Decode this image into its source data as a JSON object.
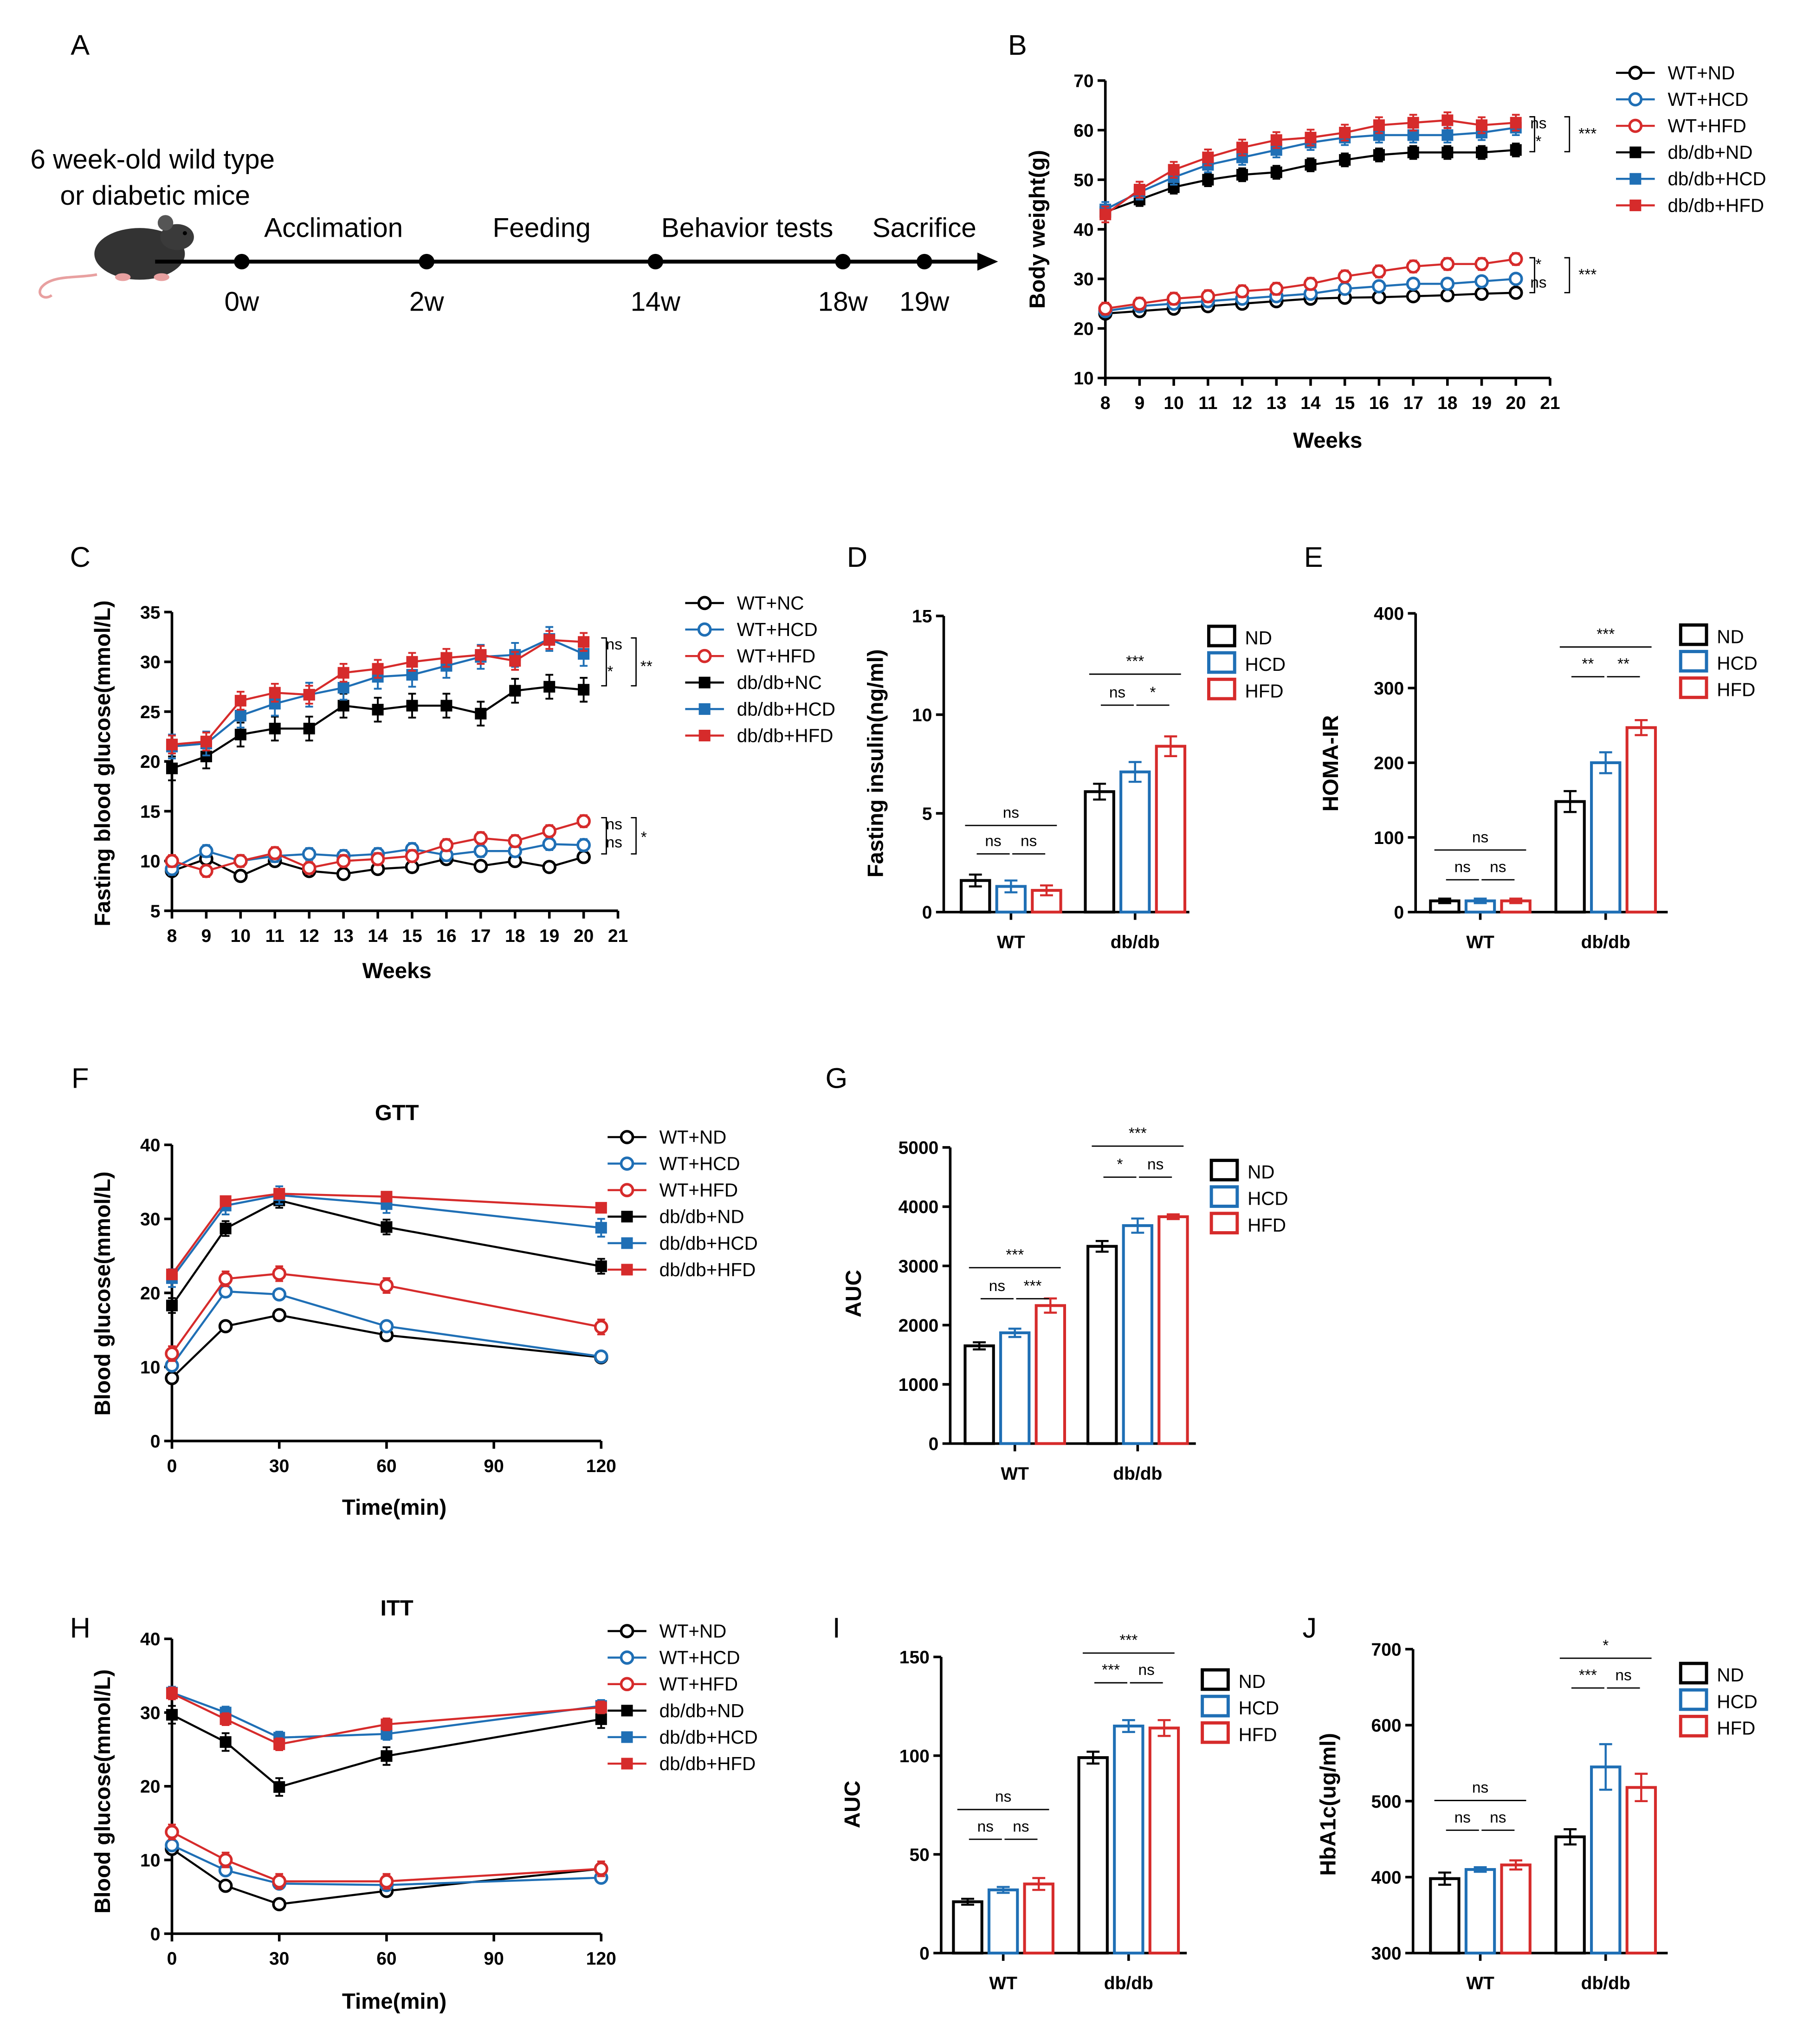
{
  "panel_letters": [
    "A",
    "B",
    "C",
    "D",
    "E",
    "F",
    "G",
    "H",
    "I",
    "J"
  ],
  "timeline": {
    "title_line1": "6 week-old wild type",
    "title_line2": "or diabetic mice",
    "phases": [
      "Acclimation",
      "Feeding",
      "Behavior tests",
      "Sacrifice"
    ],
    "time_points": [
      "0w",
      "2w",
      "14w",
      "18w",
      "19w"
    ]
  },
  "chart_data": [
    {
      "panel": "B",
      "type": "line",
      "xlabel": "Weeks",
      "ylabel": "Body weight(g)",
      "xlim": [
        8,
        21
      ],
      "ylim": [
        10,
        70
      ],
      "x_ticks": [
        "8",
        "9",
        "10",
        "11",
        "12",
        "13",
        "14",
        "15",
        "16",
        "17",
        "18",
        "19",
        "20",
        "21"
      ],
      "y_ticks": [
        "10",
        "20",
        "30",
        "40",
        "50",
        "60",
        "70"
      ],
      "x": [
        8,
        9,
        10,
        11,
        12,
        13,
        14,
        15,
        16,
        17,
        18,
        19,
        20
      ],
      "series": [
        {
          "name": "WT+ND",
          "color": "#000000",
          "marker": "open-circle",
          "err": 0.8,
          "values": [
            23,
            23.5,
            24,
            24.5,
            25,
            25.5,
            26,
            26.2,
            26.3,
            26.5,
            26.7,
            27,
            27.2
          ]
        },
        {
          "name": "WT+HCD",
          "color": "#1f6fb5",
          "marker": "open-circle",
          "err": 0.8,
          "values": [
            23.5,
            24.5,
            25,
            25.5,
            26,
            26.5,
            27,
            28,
            28.5,
            29,
            29,
            29.5,
            30
          ]
        },
        {
          "name": "WT+HFD",
          "color": "#d62b2b",
          "marker": "open-circle",
          "err": 1.2,
          "values": [
            24,
            25,
            26,
            26.5,
            27.5,
            28,
            29,
            30.5,
            31.5,
            32.5,
            33,
            33,
            34
          ]
        },
        {
          "name": "db/db+ND",
          "color": "#000000",
          "marker": "filled-square",
          "err": 1.3,
          "values": [
            43.5,
            46,
            48.5,
            50,
            51,
            51.5,
            53,
            54,
            55,
            55.5,
            55.5,
            55.5,
            56
          ]
        },
        {
          "name": "db/db+HCD",
          "color": "#1f6fb5",
          "marker": "filled-square",
          "err": 1.5,
          "values": [
            44,
            47.5,
            50.5,
            53,
            54.5,
            56,
            57.5,
            58.5,
            59,
            59,
            59,
            59.5,
            60.5
          ]
        },
        {
          "name": "db/db+HFD",
          "color": "#d62b2b",
          "marker": "filled-square",
          "err": 1.6,
          "values": [
            43,
            48,
            52,
            54.5,
            56.5,
            58,
            58.5,
            59.5,
            61,
            61.5,
            62,
            61,
            61.5
          ]
        }
      ],
      "annotations": [
        "ns",
        "*",
        "***",
        "*",
        "ns",
        "***"
      ]
    },
    {
      "panel": "C",
      "type": "line",
      "xlabel": "Weeks",
      "ylabel": "Fasting blood glucose(mmol/L)",
      "xlim": [
        8,
        21
      ],
      "ylim": [
        5,
        35
      ],
      "x_ticks": [
        "8",
        "9",
        "10",
        "11",
        "12",
        "13",
        "14",
        "15",
        "16",
        "17",
        "18",
        "19",
        "20",
        "21"
      ],
      "y_ticks": [
        "5",
        "10",
        "15",
        "20",
        "25",
        "30",
        "35"
      ],
      "x": [
        8,
        9,
        10,
        11,
        12,
        13,
        14,
        15,
        16,
        17,
        18,
        19,
        20
      ],
      "series": [
        {
          "name": "WT+NC",
          "color": "#000000",
          "marker": "open-circle",
          "err": 0.4,
          "values": [
            9,
            10.2,
            8.5,
            10,
            9,
            8.7,
            9.2,
            9.4,
            10.2,
            9.5,
            10,
            9.4,
            10.4
          ]
        },
        {
          "name": "WT+HCD",
          "color": "#1f6fb5",
          "marker": "open-circle",
          "err": 0.6,
          "values": [
            9.2,
            11,
            10,
            10.5,
            10.7,
            10.5,
            10.7,
            11.2,
            10.6,
            11,
            11,
            11.7,
            11.6
          ]
        },
        {
          "name": "WT+HFD",
          "color": "#d62b2b",
          "marker": "open-circle",
          "err": 0.6,
          "values": [
            10,
            9,
            10,
            10.8,
            9.3,
            10,
            10.2,
            10.5,
            11.6,
            12.3,
            12,
            13,
            14
          ]
        },
        {
          "name": "db/db+NC",
          "color": "#000000",
          "marker": "filled-square",
          "err": 1.2,
          "values": [
            19.3,
            20.5,
            22.7,
            23.3,
            23.3,
            25.6,
            25.2,
            25.6,
            25.6,
            24.8,
            27.1,
            27.5,
            27.2
          ]
        },
        {
          "name": "db/db+HCD",
          "color": "#1f6fb5",
          "marker": "filled-square",
          "err": 1.2,
          "values": [
            21.5,
            21.8,
            24.6,
            25.8,
            26.7,
            27.4,
            28.5,
            28.7,
            29.6,
            30.5,
            30.7,
            32.3,
            30.8
          ]
        },
        {
          "name": "db/db+HFD",
          "color": "#d62b2b",
          "marker": "filled-square",
          "err": 0.9,
          "values": [
            21.7,
            22,
            26.1,
            26.9,
            26.7,
            28.9,
            29.3,
            30,
            30.4,
            30.7,
            30.1,
            32.2,
            32
          ]
        }
      ],
      "annotations": [
        "ns",
        "*",
        "**",
        "ns",
        "ns",
        "*"
      ]
    },
    {
      "panel": "D",
      "type": "bar",
      "ylabel": "Fasting insulin(ng/ml)",
      "ylim": [
        0,
        15
      ],
      "y_ticks": [
        "0",
        "5",
        "10",
        "15"
      ],
      "categories": [
        "WT",
        "db/db"
      ],
      "legend": [
        "ND",
        "HCD",
        "HFD"
      ],
      "colors": [
        "#000000",
        "#1f6fb5",
        "#d62b2b"
      ],
      "series": [
        {
          "name": "ND",
          "values": [
            1.6,
            6.1
          ],
          "err": [
            0.3,
            0.4
          ]
        },
        {
          "name": "HCD",
          "values": [
            1.3,
            7.1
          ],
          "err": [
            0.3,
            0.5
          ]
        },
        {
          "name": "HFD",
          "values": [
            1.1,
            8.4
          ],
          "err": [
            0.25,
            0.5
          ]
        }
      ],
      "significance": [
        {
          "group": 0,
          "from": 0,
          "to": 1,
          "label": "ns"
        },
        {
          "group": 0,
          "from": 1,
          "to": 2,
          "label": "ns"
        },
        {
          "group": 0,
          "from": 0,
          "to": 2,
          "label": "ns"
        },
        {
          "group": 1,
          "from": 0,
          "to": 1,
          "label": "ns"
        },
        {
          "group": 1,
          "from": 1,
          "to": 2,
          "label": "*"
        },
        {
          "group": 1,
          "from": 0,
          "to": 2,
          "label": "***"
        }
      ]
    },
    {
      "panel": "E",
      "type": "bar",
      "ylabel": "HOMA-IR",
      "ylim": [
        0,
        400
      ],
      "y_ticks": [
        "0",
        "100",
        "200",
        "300",
        "400"
      ],
      "categories": [
        "WT",
        "db/db"
      ],
      "legend": [
        "ND",
        "HCD",
        "HFD"
      ],
      "colors": [
        "#000000",
        "#1f6fb5",
        "#d62b2b"
      ],
      "series": [
        {
          "name": "ND",
          "values": [
            15,
            148
          ],
          "err": [
            3,
            14
          ]
        },
        {
          "name": "HCD",
          "values": [
            15,
            200
          ],
          "err": [
            3,
            14
          ]
        },
        {
          "name": "HFD",
          "values": [
            15,
            247
          ],
          "err": [
            3,
            10
          ]
        }
      ],
      "significance": [
        {
          "group": 0,
          "from": 0,
          "to": 1,
          "label": "ns"
        },
        {
          "group": 0,
          "from": 1,
          "to": 2,
          "label": "ns"
        },
        {
          "group": 0,
          "from": 0,
          "to": 2,
          "label": "ns"
        },
        {
          "group": 1,
          "from": 0,
          "to": 1,
          "label": "**"
        },
        {
          "group": 1,
          "from": 1,
          "to": 2,
          "label": "**"
        },
        {
          "group": 1,
          "from": 0,
          "to": 2,
          "label": "***"
        }
      ]
    },
    {
      "panel": "F",
      "type": "line",
      "title": "GTT",
      "xlabel": "Time(min)",
      "ylabel": "Blood glucose(mmol/L)",
      "xlim": [
        0,
        120
      ],
      "ylim": [
        0,
        40
      ],
      "x_ticks": [
        "0",
        "30",
        "60",
        "90",
        "120"
      ],
      "y_ticks": [
        "0",
        "10",
        "20",
        "30",
        "40"
      ],
      "x": [
        0,
        15,
        30,
        60,
        120
      ],
      "series": [
        {
          "name": "WT+ND",
          "color": "#000000",
          "marker": "open-circle",
          "err": 0.6,
          "values": [
            8.5,
            15.5,
            17,
            14.3,
            11.3
          ]
        },
        {
          "name": "WT+HCD",
          "color": "#1f6fb5",
          "marker": "open-circle",
          "err": 0.6,
          "values": [
            10.2,
            20.2,
            19.8,
            15.5,
            11.4
          ]
        },
        {
          "name": "WT+HFD",
          "color": "#d62b2b",
          "marker": "open-circle",
          "err": 1,
          "values": [
            11.8,
            21.9,
            22.6,
            21,
            15.4
          ]
        },
        {
          "name": "db/db+ND",
          "color": "#000000",
          "marker": "filled-square",
          "err": 1,
          "values": [
            18.3,
            28.7,
            32.5,
            28.9,
            23.6
          ]
        },
        {
          "name": "db/db+HCD",
          "color": "#1f6fb5",
          "marker": "filled-square",
          "err": 1.2,
          "values": [
            22,
            31.8,
            33.2,
            32,
            28.8
          ]
        },
        {
          "name": "db/db+HFD",
          "color": "#d62b2b",
          "marker": "filled-square",
          "err": 0.6,
          "values": [
            22.5,
            32.4,
            33.4,
            33,
            31.5
          ]
        }
      ],
      "annotations": []
    },
    {
      "panel": "G",
      "type": "bar",
      "ylabel": "AUC",
      "ylim": [
        0,
        5000
      ],
      "y_ticks": [
        "0",
        "1000",
        "2000",
        "3000",
        "4000",
        "5000"
      ],
      "categories": [
        "WT",
        "db/db"
      ],
      "legend": [
        "ND",
        "HCD",
        "HFD"
      ],
      "colors": [
        "#000000",
        "#1f6fb5",
        "#d62b2b"
      ],
      "series": [
        {
          "name": "ND",
          "values": [
            1650,
            3330
          ],
          "err": [
            60,
            90
          ]
        },
        {
          "name": "HCD",
          "values": [
            1870,
            3680
          ],
          "err": [
            70,
            120
          ]
        },
        {
          "name": "HFD",
          "values": [
            2330,
            3830
          ],
          "err": [
            120,
            40
          ]
        }
      ],
      "significance": [
        {
          "group": 0,
          "from": 0,
          "to": 1,
          "label": "ns"
        },
        {
          "group": 0,
          "from": 1,
          "to": 2,
          "label": "***"
        },
        {
          "group": 0,
          "from": 0,
          "to": 2,
          "label": "***"
        },
        {
          "group": 1,
          "from": 0,
          "to": 1,
          "label": "*"
        },
        {
          "group": 1,
          "from": 1,
          "to": 2,
          "label": "ns"
        },
        {
          "group": 1,
          "from": 0,
          "to": 2,
          "label": "***"
        }
      ]
    },
    {
      "panel": "H",
      "type": "line",
      "title": "ITT",
      "xlabel": "Time(min)",
      "ylabel": "Blood glucose(mmol/L)",
      "xlim": [
        0,
        120
      ],
      "ylim": [
        0,
        40
      ],
      "x_ticks": [
        "0",
        "30",
        "60",
        "90",
        "120"
      ],
      "y_ticks": [
        "0",
        "10",
        "20",
        "30",
        "40"
      ],
      "x": [
        0,
        15,
        30,
        60,
        120
      ],
      "series": [
        {
          "name": "WT+ND",
          "color": "#000000",
          "marker": "open-circle",
          "err": 0.4,
          "values": [
            11.5,
            6.5,
            4,
            5.8,
            8.8
          ]
        },
        {
          "name": "WT+HCD",
          "color": "#1f6fb5",
          "marker": "open-circle",
          "err": 0.6,
          "values": [
            12,
            8.6,
            6.8,
            6.6,
            7.6
          ]
        },
        {
          "name": "WT+HFD",
          "color": "#d62b2b",
          "marker": "open-circle",
          "err": 1,
          "values": [
            13.8,
            10,
            7.1,
            7.1,
            8.8
          ]
        },
        {
          "name": "db/db+ND",
          "color": "#000000",
          "marker": "filled-square",
          "err": 1.2,
          "values": [
            29.7,
            26,
            19.9,
            24.1,
            29.1
          ]
        },
        {
          "name": "db/db+HCD",
          "color": "#1f6fb5",
          "marker": "filled-square",
          "err": 0.8,
          "values": [
            32.7,
            30,
            26.6,
            27.1,
            30.9
          ]
        },
        {
          "name": "db/db+HFD",
          "color": "#d62b2b",
          "marker": "filled-square",
          "err": 0.8,
          "values": [
            32.6,
            29.1,
            25.7,
            28.4,
            30.7
          ]
        }
      ],
      "annotations": []
    },
    {
      "panel": "I",
      "type": "bar",
      "ylabel": "AUC",
      "ylim": [
        0,
        150
      ],
      "y_ticks": [
        "0",
        "50",
        "100",
        "150"
      ],
      "categories": [
        "WT",
        "db/db"
      ],
      "legend": [
        "ND",
        "HCD",
        "HFD"
      ],
      "colors": [
        "#000000",
        "#1f6fb5",
        "#d62b2b"
      ],
      "series": [
        {
          "name": "ND",
          "values": [
            26,
            99
          ],
          "err": [
            1.5,
            3
          ]
        },
        {
          "name": "HCD",
          "values": [
            32,
            115
          ],
          "err": [
            1.5,
            3
          ]
        },
        {
          "name": "HFD",
          "values": [
            35,
            114
          ],
          "err": [
            3,
            4
          ]
        }
      ],
      "significance": [
        {
          "group": 0,
          "from": 0,
          "to": 1,
          "label": "ns"
        },
        {
          "group": 0,
          "from": 1,
          "to": 2,
          "label": "ns"
        },
        {
          "group": 0,
          "from": 0,
          "to": 2,
          "label": "ns"
        },
        {
          "group": 1,
          "from": 0,
          "to": 1,
          "label": "***"
        },
        {
          "group": 1,
          "from": 1,
          "to": 2,
          "label": "ns"
        },
        {
          "group": 1,
          "from": 0,
          "to": 2,
          "label": "***"
        }
      ]
    },
    {
      "panel": "J",
      "type": "bar",
      "ylabel": "HbA1c(ug/ml)",
      "ylim": [
        300,
        700
      ],
      "y_ticks": [
        "300",
        "400",
        "500",
        "600",
        "700"
      ],
      "categories": [
        "WT",
        "db/db"
      ],
      "legend": [
        "ND",
        "HCD",
        "HFD"
      ],
      "colors": [
        "#000000",
        "#1f6fb5",
        "#d62b2b"
      ],
      "series": [
        {
          "name": "ND",
          "values": [
            398,
            453
          ],
          "err": [
            8,
            10
          ]
        },
        {
          "name": "HCD",
          "values": [
            410,
            545
          ],
          "err": [
            3,
            30
          ]
        },
        {
          "name": "HFD",
          "values": [
            416,
            518
          ],
          "err": [
            6,
            18
          ]
        }
      ],
      "significance": [
        {
          "group": 0,
          "from": 0,
          "to": 1,
          "label": "ns"
        },
        {
          "group": 0,
          "from": 1,
          "to": 2,
          "label": "ns"
        },
        {
          "group": 0,
          "from": 0,
          "to": 2,
          "label": "ns"
        },
        {
          "group": 1,
          "from": 0,
          "to": 1,
          "label": "***"
        },
        {
          "group": 1,
          "from": 1,
          "to": 2,
          "label": "ns"
        },
        {
          "group": 1,
          "from": 0,
          "to": 2,
          "label": "*"
        }
      ]
    }
  ]
}
